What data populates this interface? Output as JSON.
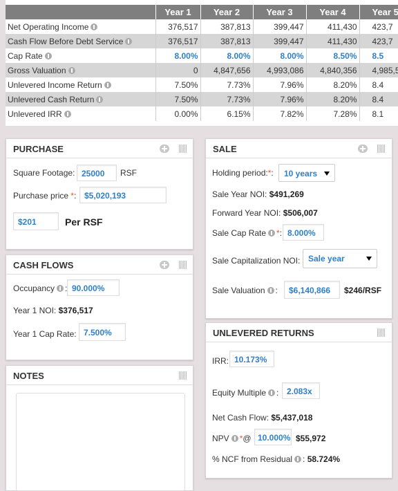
{
  "table": {
    "header": [
      "Year 1",
      "Year 2",
      "Year 3",
      "Year 4",
      "Year 5"
    ],
    "rows": [
      {
        "label": "Net Operating Income",
        "values": [
          "376,517",
          "387,813",
          "399,447",
          "411,430",
          "423,7"
        ]
      },
      {
        "label": "Cash Flow Before Debt Service",
        "values": [
          "376,517",
          "387,813",
          "399,447",
          "411,430",
          "423,7"
        ]
      },
      {
        "label": "Cap Rate",
        "values": [
          "8.00%",
          "8.00%",
          "8.00%",
          "8.50%",
          "8.5"
        ]
      },
      {
        "label": "Gross Valuation",
        "values": [
          "0",
          "4,847,656",
          "4,993,086",
          "4,840,356",
          "4,985,5"
        ]
      },
      {
        "label": "Unlevered Income Return",
        "values": [
          "7.50%",
          "7.73%",
          "7.96%",
          "8.20%",
          "8.4"
        ]
      },
      {
        "label": "Unlevered Cash Return",
        "values": [
          "7.50%",
          "7.73%",
          "7.96%",
          "8.20%",
          "8.4"
        ]
      },
      {
        "label": "Unlevered IRR",
        "values": [
          "0.00%",
          "6.15%",
          "7.82%",
          "7.28%",
          "8.1"
        ]
      }
    ]
  },
  "purchase": {
    "title": "PURCHASE",
    "square_footage_label": "Square Footage:",
    "square_footage": "25000",
    "square_footage_unit": "RSF",
    "purchase_price_label": "Purchase price",
    "required": "*",
    "colon": ":",
    "purchase_price": "$5,020,193",
    "per_rsf_value": "$201",
    "per_rsf_label": "Per RSF"
  },
  "cash_flows": {
    "title": "CASH FLOWS",
    "occupancy_label": "Occupancy",
    "colon": ":",
    "occupancy": "90.000%",
    "noi_label": "Year 1 NOI:",
    "noi": "$376,517",
    "cap_rate_label": "Year 1 Cap Rate:",
    "cap_rate": "7.500%"
  },
  "notes": {
    "title": "NOTES"
  },
  "sale": {
    "title": "SALE",
    "holding_label": "Holding period:",
    "required": "*",
    "colon": ":",
    "holding": "10 years",
    "sale_noi_label": "Sale Year NOI:",
    "sale_noi": "$491,269",
    "forward_noi_label": "Forward Year NOI:",
    "forward_noi": "$506,007",
    "cap_rate_label": "Sale Cap Rate",
    "cap_rate": "8.000%",
    "cap_noi_label": "Sale Capitalization NOI:",
    "cap_noi": "Sale year",
    "valuation_label": "Sale Valuation",
    "valuation": "$6,140,866",
    "valuation_per_rsf": "$246/RSF"
  },
  "returns": {
    "title": "UNLEVERED RETURNS",
    "irr_label": "IRR:",
    "irr": "10.173%",
    "multiple_label": "Equity Multiple",
    "colon": ":",
    "multiple": "2.083x",
    "ncf_label": "Net Cash Flow:",
    "ncf": "$5,437,018",
    "npv_label": "NPV",
    "required": "*",
    "at": "@",
    "npv_rate": "10.000%",
    "npv": "$55,972",
    "residual_label": "% NCF from Residual",
    "residual": "58.724%"
  }
}
